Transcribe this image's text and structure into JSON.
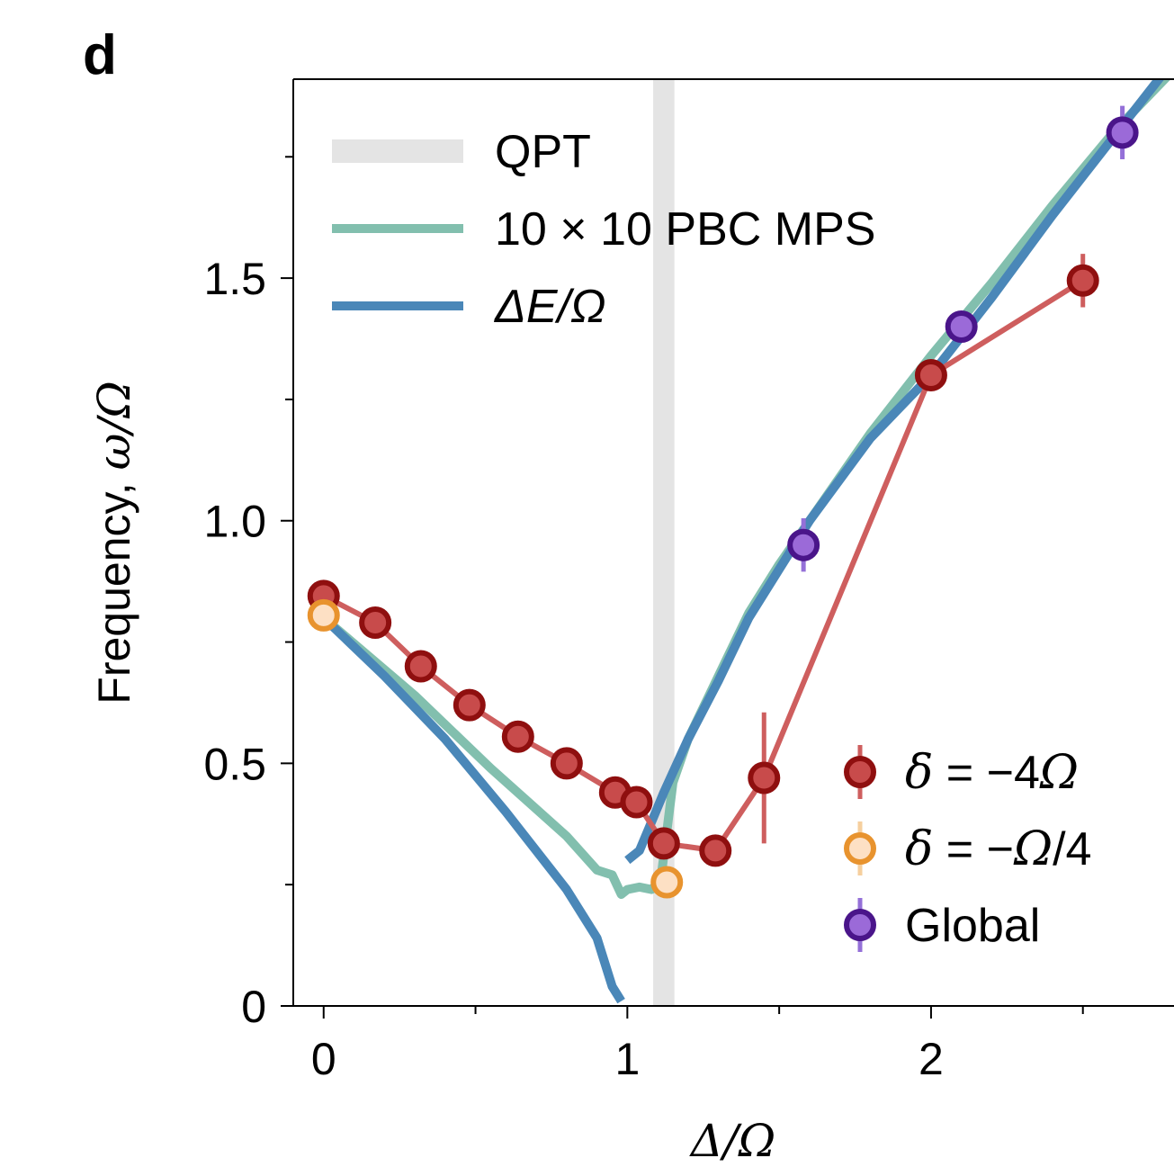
{
  "panel_label": "d",
  "chart_data": {
    "type": "line",
    "xlabel": "Δ/Ω",
    "ylabel_prefix": "Frequency, ",
    "ylabel_symbol": "ω/Ω",
    "xlim": [
      -0.1,
      2.8
    ],
    "ylim": [
      0,
      1.91
    ],
    "x_ticks": [
      0,
      1,
      2
    ],
    "x_tick_labels": [
      "0",
      "1",
      "2"
    ],
    "x_minor_ticks": [
      0.5,
      1.5,
      2.5
    ],
    "y_ticks": [
      0,
      0.5,
      1.0,
      1.5
    ],
    "y_tick_labels": [
      "0",
      "0.5",
      "1.0",
      "1.5"
    ],
    "y_minor_ticks": [
      0.25,
      0.75,
      1.25,
      1.75
    ],
    "qpt": {
      "x": 1.12,
      "width": 0.07,
      "label": "QPT",
      "color": "#e4e4e4"
    },
    "lines": [
      {
        "name": "10 × 10 PBC MPS",
        "color": "#82bfae",
        "segments": [
          [
            [
              0,
              0.8
            ],
            [
              0.3,
              0.64
            ],
            [
              0.55,
              0.49
            ],
            [
              0.8,
              0.35
            ],
            [
              0.9,
              0.28
            ],
            [
              0.95,
              0.27
            ],
            [
              0.98,
              0.23
            ],
            [
              1.0,
              0.24
            ],
            [
              1.04,
              0.245
            ],
            [
              1.08,
              0.24
            ],
            [
              1.11,
              0.26
            ],
            [
              1.15,
              0.46
            ],
            [
              1.2,
              0.55
            ],
            [
              1.3,
              0.68
            ],
            [
              1.4,
              0.81
            ],
            [
              1.5,
              0.91
            ],
            [
              1.6,
              1.0
            ],
            [
              1.8,
              1.18
            ],
            [
              2.0,
              1.34
            ],
            [
              2.2,
              1.49
            ],
            [
              2.4,
              1.65
            ],
            [
              2.6,
              1.8
            ],
            [
              2.8,
              1.93
            ]
          ]
        ]
      },
      {
        "name": "ΔE/Ω",
        "color": "#4a87b8",
        "segments": [
          [
            [
              0,
              0.8
            ],
            [
              0.2,
              0.68
            ],
            [
              0.4,
              0.55
            ],
            [
              0.6,
              0.4
            ],
            [
              0.8,
              0.24
            ],
            [
              0.9,
              0.14
            ],
            [
              0.95,
              0.04
            ],
            [
              0.98,
              0.01
            ]
          ],
          [
            [
              1.0,
              0.3
            ],
            [
              1.04,
              0.32
            ],
            [
              1.08,
              0.38
            ],
            [
              1.12,
              0.44
            ],
            [
              1.2,
              0.55
            ],
            [
              1.3,
              0.67
            ],
            [
              1.4,
              0.8
            ],
            [
              1.5,
              0.9
            ],
            [
              1.6,
              1.0
            ],
            [
              1.8,
              1.17
            ],
            [
              2.0,
              1.3
            ],
            [
              2.2,
              1.46
            ],
            [
              2.4,
              1.63
            ],
            [
              2.6,
              1.79
            ],
            [
              2.8,
              1.95
            ]
          ]
        ]
      }
    ],
    "series": [
      {
        "name": "δ = −4Ω",
        "legend_symbol": "δ",
        "legend_rest": " = −4",
        "legend_omega": "Ω",
        "legend_tail": "",
        "color": "#ce5e5e",
        "edge": "#8f0f0f",
        "fill": "#c84b4b",
        "connect": true,
        "points": [
          {
            "x": 0.0,
            "y": 0.845,
            "err": 0
          },
          {
            "x": 0.17,
            "y": 0.79,
            "err": 0
          },
          {
            "x": 0.32,
            "y": 0.7,
            "err": 0
          },
          {
            "x": 0.48,
            "y": 0.62,
            "err": 0
          },
          {
            "x": 0.64,
            "y": 0.555,
            "err": 0
          },
          {
            "x": 0.8,
            "y": 0.5,
            "err": 0
          },
          {
            "x": 0.96,
            "y": 0.44,
            "err": 0
          },
          {
            "x": 1.03,
            "y": 0.42,
            "err": 0
          },
          {
            "x": 1.12,
            "y": 0.335,
            "err": 0
          },
          {
            "x": 1.29,
            "y": 0.32,
            "err": 0
          },
          {
            "x": 1.45,
            "y": 0.47,
            "err": 0.135
          },
          {
            "x": 2.0,
            "y": 1.3,
            "err": 0
          },
          {
            "x": 2.5,
            "y": 1.495,
            "err": 0.055
          }
        ]
      },
      {
        "name": "δ = −Ω/4",
        "legend_symbol": "δ",
        "legend_rest": " = −",
        "legend_omega": "Ω",
        "legend_tail": "/4",
        "color": "#f6cf9e",
        "edge": "#e8932e",
        "fill": "#fde0c4",
        "connect": false,
        "points": [
          {
            "x": 0.0,
            "y": 0.805,
            "err": 0
          },
          {
            "x": 1.13,
            "y": 0.255,
            "err": 0
          }
        ]
      },
      {
        "name": "Global",
        "legend_symbol": "",
        "legend_rest": "Global",
        "legend_omega": "",
        "legend_tail": "",
        "color": "#9470d8",
        "edge": "#4a158a",
        "fill": "#9b6ad8",
        "connect": false,
        "points": [
          {
            "x": 1.58,
            "y": 0.95,
            "err": 0.055
          },
          {
            "x": 2.1,
            "y": 1.4,
            "err": 0
          },
          {
            "x": 2.63,
            "y": 1.8,
            "err": 0.055
          }
        ]
      }
    ]
  }
}
